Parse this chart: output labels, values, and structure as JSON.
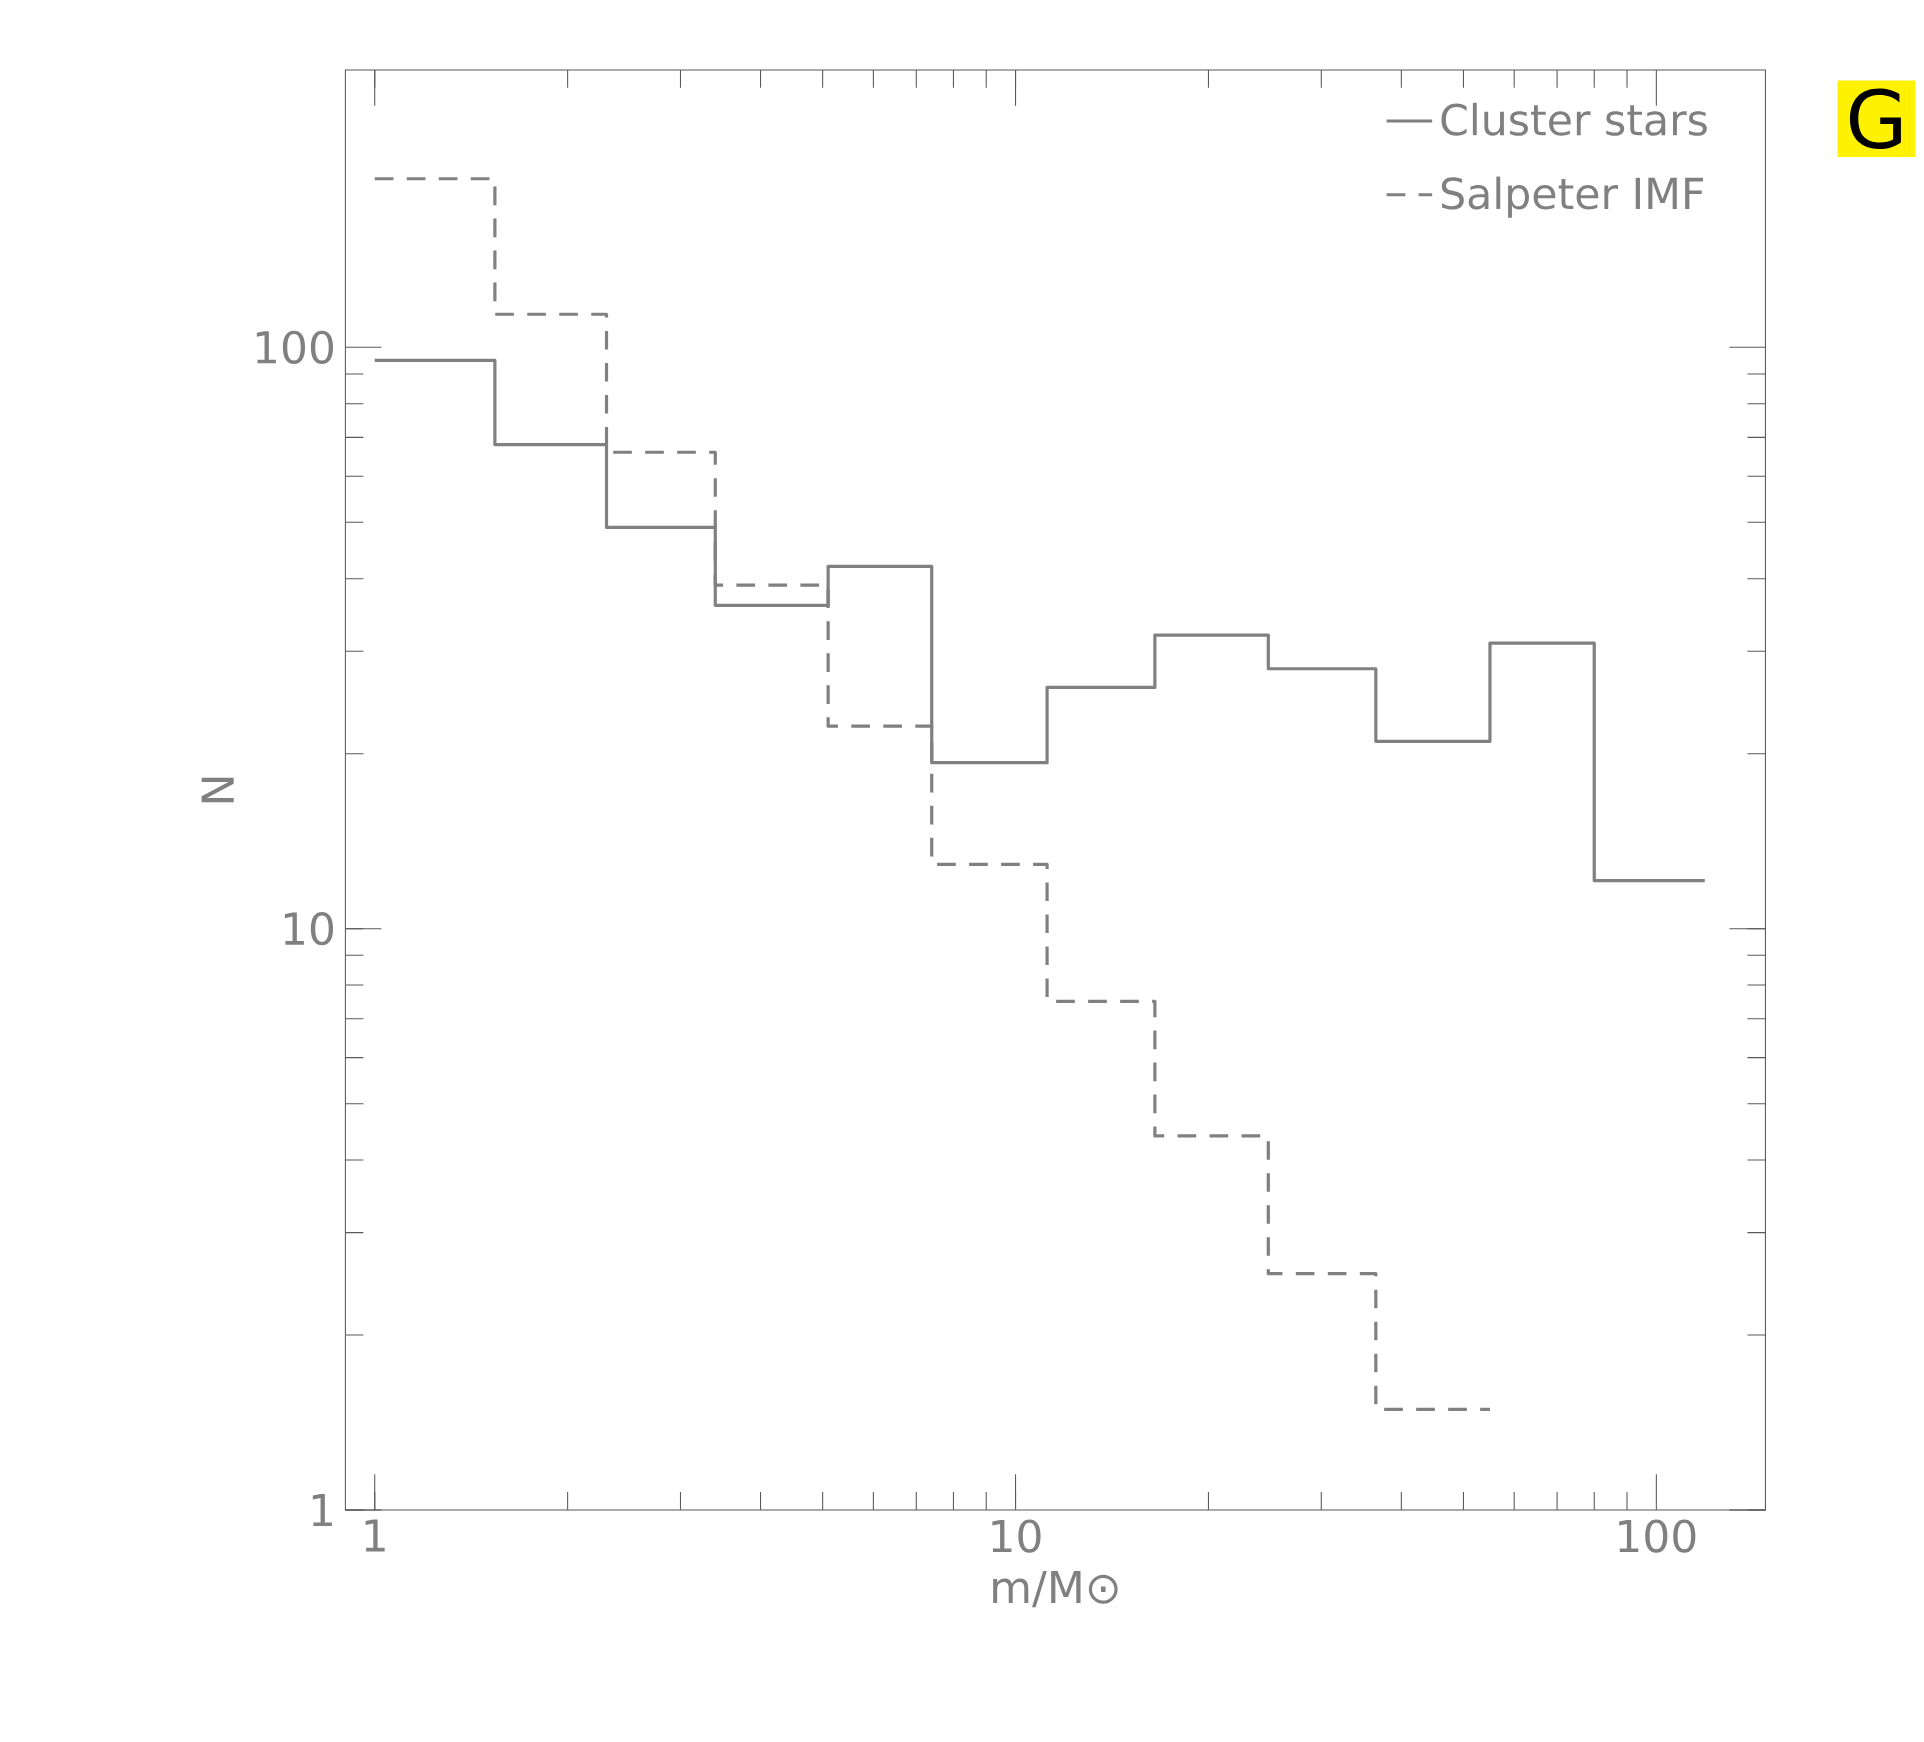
{
  "chart_data": {
    "type": "step",
    "xlabel": "m/M⊙",
    "ylabel": "N",
    "annotations": [
      "G"
    ],
    "series": [
      {
        "name": "Cluster stars",
        "color": "#808080",
        "line_style": "solid",
        "x": [
          1,
          1.54,
          2.3,
          3.4,
          5.1,
          7.4,
          11.2,
          16.5,
          24.8,
          36.5,
          55,
          80,
          119
        ],
        "values": [
          95,
          68,
          49,
          36,
          42,
          19.3,
          26,
          32,
          28,
          21,
          31,
          12.1,
          12.1
        ]
      },
      {
        "name": "Salpeter IMF",
        "color": "#808080",
        "line_style": "dashed",
        "x": [
          1,
          1.54,
          2.3,
          3.4,
          5.1,
          7.4,
          11.2,
          16.5,
          24.8,
          36.5,
          55
        ],
        "values": [
          195,
          114,
          66,
          39,
          22.3,
          12.9,
          7.5,
          4.4,
          2.55,
          1.49,
          1.49
        ]
      }
    ],
    "log": "xy",
    "xlim": [
      0.9,
      148
    ],
    "ylim": [
      1,
      300
    ],
    "xticks": [
      1,
      10,
      100
    ],
    "yticks": [
      1,
      10,
      100
    ],
    "grid": false,
    "legend": "top right"
  }
}
